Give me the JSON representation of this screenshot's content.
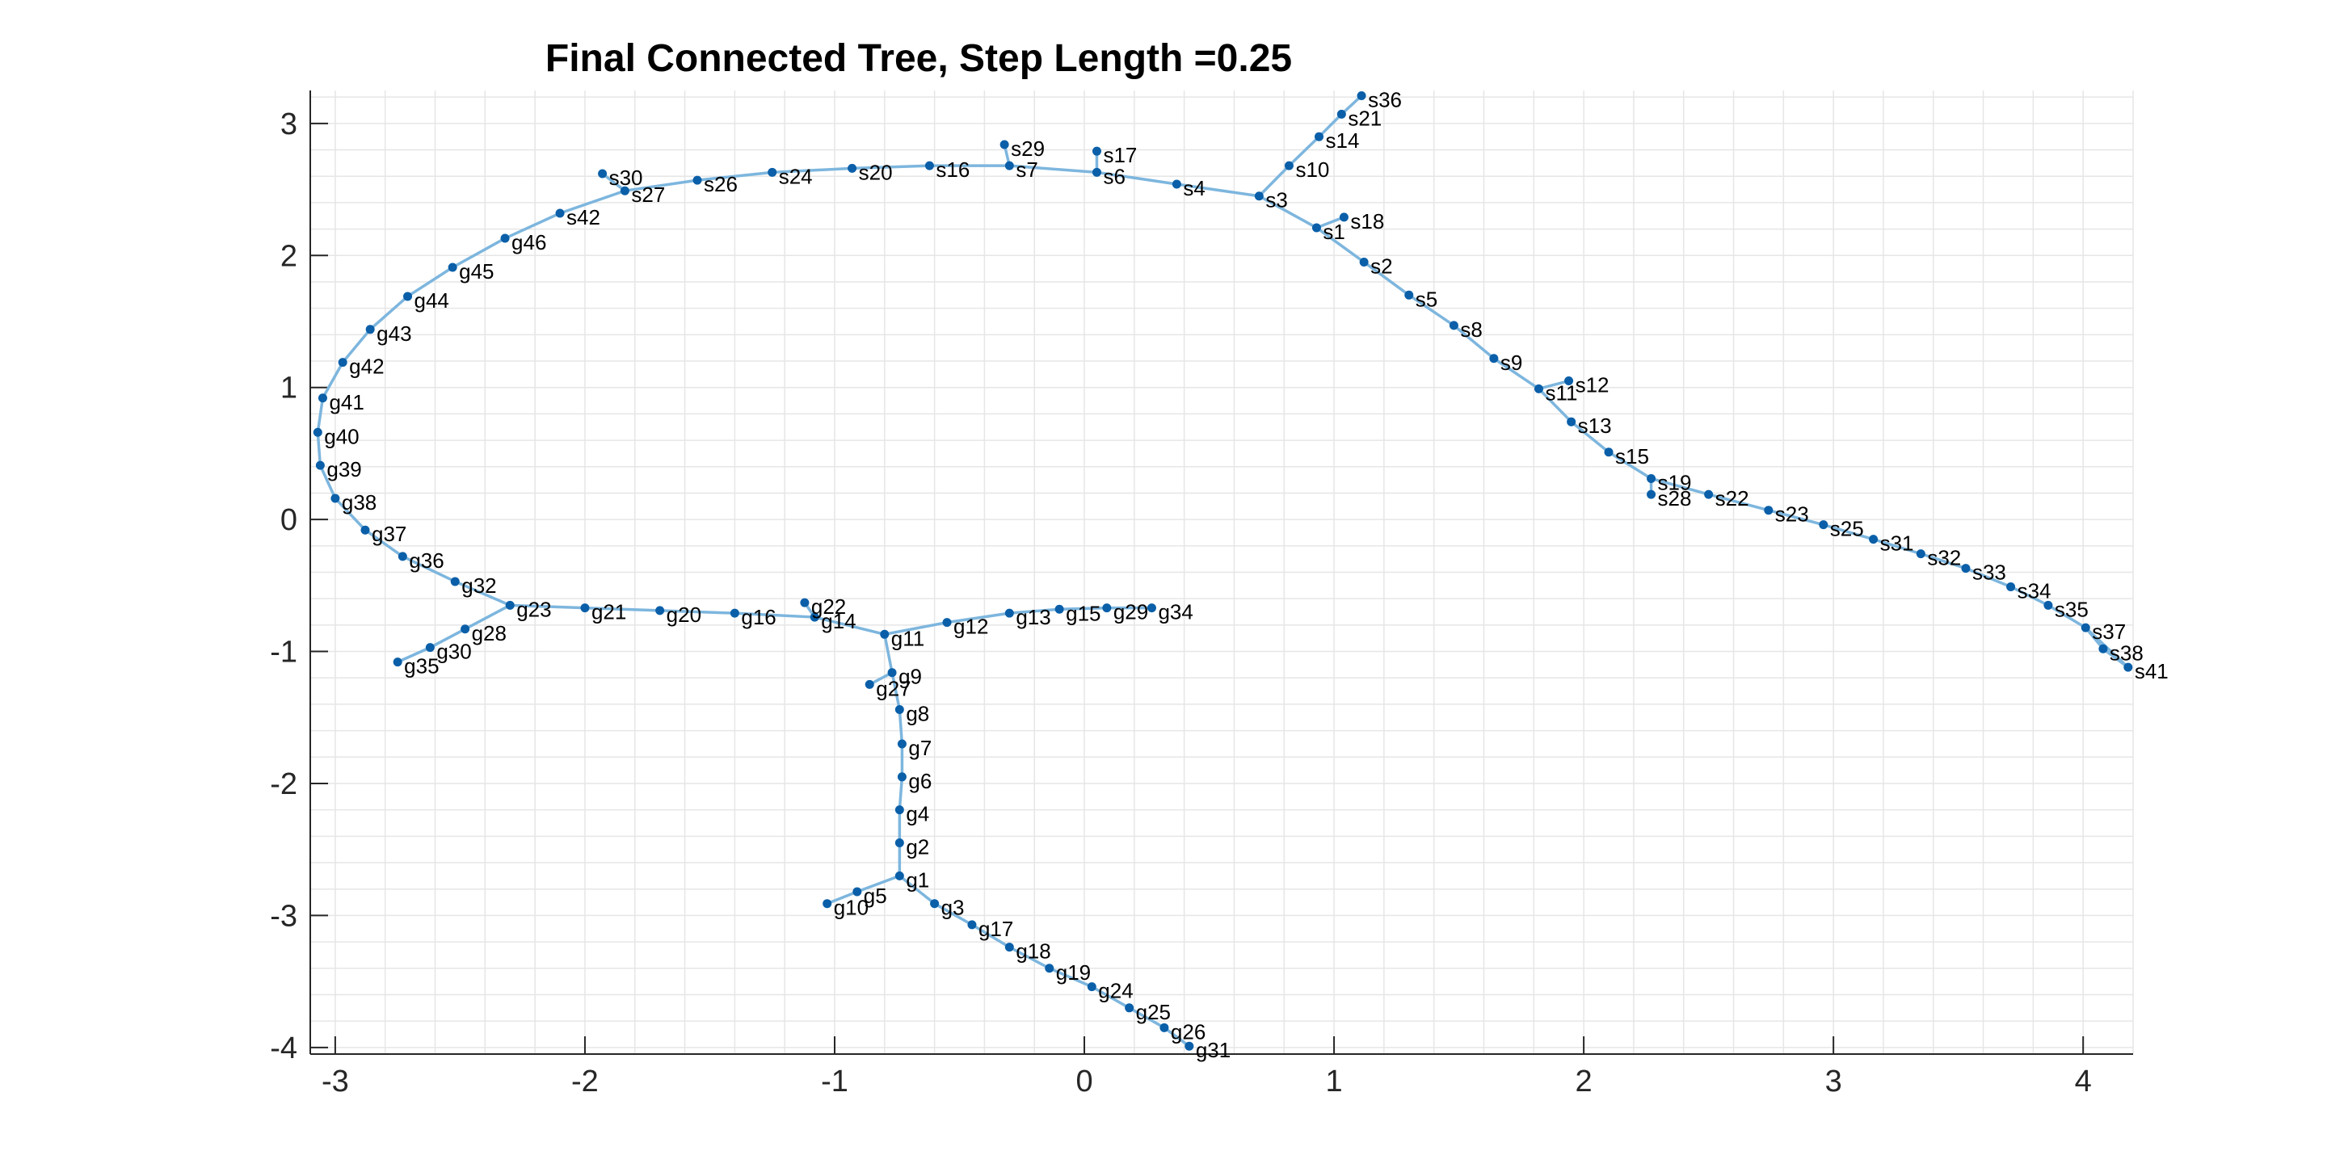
{
  "chart_data": {
    "type": "scatter",
    "title": "Final Connected Tree, Step Length =0.25",
    "xlabel": "",
    "ylabel": "",
    "xlim": [
      -3.1,
      4.2
    ],
    "ylim": [
      -4.05,
      3.25
    ],
    "xticks": [
      -3,
      -2,
      -1,
      0,
      1,
      2,
      3,
      4
    ],
    "yticks": [
      -4,
      -3,
      -2,
      -1,
      0,
      1,
      2,
      3
    ],
    "grid": true,
    "colors": {
      "edge": "#7db6de",
      "node": "#0a5fa8"
    },
    "nodes": [
      {
        "name": "s1",
        "x": 0.93,
        "y": 2.21
      },
      {
        "name": "s2",
        "x": 1.12,
        "y": 1.95
      },
      {
        "name": "s3",
        "x": 0.7,
        "y": 2.45
      },
      {
        "name": "s4",
        "x": 0.37,
        "y": 2.54
      },
      {
        "name": "s5",
        "x": 1.3,
        "y": 1.7
      },
      {
        "name": "s6",
        "x": 0.05,
        "y": 2.63
      },
      {
        "name": "s7",
        "x": -0.3,
        "y": 2.68
      },
      {
        "name": "s8",
        "x": 1.48,
        "y": 1.47
      },
      {
        "name": "s9",
        "x": 1.64,
        "y": 1.22
      },
      {
        "name": "s10",
        "x": 0.82,
        "y": 2.68
      },
      {
        "name": "s11",
        "x": 1.82,
        "y": 0.99
      },
      {
        "name": "s12",
        "x": 1.94,
        "y": 1.05
      },
      {
        "name": "s13",
        "x": 1.95,
        "y": 0.74
      },
      {
        "name": "s14",
        "x": 0.94,
        "y": 2.9
      },
      {
        "name": "s15",
        "x": 2.1,
        "y": 0.51
      },
      {
        "name": "s16",
        "x": -0.62,
        "y": 2.68
      },
      {
        "name": "s17",
        "x": 0.05,
        "y": 2.79
      },
      {
        "name": "s18",
        "x": 1.04,
        "y": 2.29
      },
      {
        "name": "s19",
        "x": 2.27,
        "y": 0.31
      },
      {
        "name": "s20",
        "x": -0.93,
        "y": 2.66
      },
      {
        "name": "s21",
        "x": 1.03,
        "y": 3.07
      },
      {
        "name": "s22",
        "x": 2.5,
        "y": 0.19
      },
      {
        "name": "s23",
        "x": 2.74,
        "y": 0.07
      },
      {
        "name": "s24",
        "x": -1.25,
        "y": 2.63
      },
      {
        "name": "s25",
        "x": 2.96,
        "y": -0.04
      },
      {
        "name": "s26",
        "x": -1.55,
        "y": 2.57
      },
      {
        "name": "s27",
        "x": -1.84,
        "y": 2.49
      },
      {
        "name": "s28",
        "x": 2.27,
        "y": 0.19
      },
      {
        "name": "s29",
        "x": -0.32,
        "y": 2.84
      },
      {
        "name": "s30",
        "x": -1.93,
        "y": 2.62
      },
      {
        "name": "s31",
        "x": 3.16,
        "y": -0.15
      },
      {
        "name": "s32",
        "x": 3.35,
        "y": -0.26
      },
      {
        "name": "s33",
        "x": 3.53,
        "y": -0.37
      },
      {
        "name": "s34",
        "x": 3.71,
        "y": -0.51
      },
      {
        "name": "s35",
        "x": 3.86,
        "y": -0.65
      },
      {
        "name": "s36",
        "x": 1.11,
        "y": 3.21
      },
      {
        "name": "s37",
        "x": 4.01,
        "y": -0.82
      },
      {
        "name": "s38",
        "x": 4.08,
        "y": -0.98
      },
      {
        "name": "s41",
        "x": 4.18,
        "y": -1.12
      },
      {
        "name": "s42",
        "x": -2.1,
        "y": 2.32
      },
      {
        "name": "g1",
        "x": -0.74,
        "y": -2.7
      },
      {
        "name": "g2",
        "x": -0.74,
        "y": -2.45
      },
      {
        "name": "g3",
        "x": -0.6,
        "y": -2.91
      },
      {
        "name": "g4",
        "x": -0.74,
        "y": -2.2
      },
      {
        "name": "g5",
        "x": -0.91,
        "y": -2.82
      },
      {
        "name": "g6",
        "x": -0.73,
        "y": -1.95
      },
      {
        "name": "g7",
        "x": -0.73,
        "y": -1.7
      },
      {
        "name": "g8",
        "x": -0.74,
        "y": -1.44
      },
      {
        "name": "g9",
        "x": -0.77,
        "y": -1.16
      },
      {
        "name": "g10",
        "x": -1.03,
        "y": -2.91
      },
      {
        "name": "g11",
        "x": -0.8,
        "y": -0.87
      },
      {
        "name": "g12",
        "x": -0.55,
        "y": -0.78
      },
      {
        "name": "g13",
        "x": -0.3,
        "y": -0.71
      },
      {
        "name": "g14",
        "x": -1.08,
        "y": -0.74
      },
      {
        "name": "g15",
        "x": -0.1,
        "y": -0.68
      },
      {
        "name": "g16",
        "x": -1.4,
        "y": -0.71
      },
      {
        "name": "g17",
        "x": -0.45,
        "y": -3.07
      },
      {
        "name": "g18",
        "x": -0.3,
        "y": -3.24
      },
      {
        "name": "g19",
        "x": -0.14,
        "y": -3.4
      },
      {
        "name": "g20",
        "x": -1.7,
        "y": -0.69
      },
      {
        "name": "g21",
        "x": -2.0,
        "y": -0.67
      },
      {
        "name": "g22",
        "x": -1.12,
        "y": -0.63
      },
      {
        "name": "g23",
        "x": -2.3,
        "y": -0.65
      },
      {
        "name": "g24",
        "x": 0.03,
        "y": -3.54
      },
      {
        "name": "g25",
        "x": 0.18,
        "y": -3.7
      },
      {
        "name": "g26",
        "x": 0.32,
        "y": -3.85
      },
      {
        "name": "g27",
        "x": -0.86,
        "y": -1.25
      },
      {
        "name": "g28",
        "x": -2.48,
        "y": -0.83
      },
      {
        "name": "g29",
        "x": 0.09,
        "y": -0.67
      },
      {
        "name": "g30",
        "x": -2.62,
        "y": -0.97
      },
      {
        "name": "g31",
        "x": 0.42,
        "y": -3.99
      },
      {
        "name": "g32",
        "x": -2.52,
        "y": -0.47
      },
      {
        "name": "g34",
        "x": 0.27,
        "y": -0.67
      },
      {
        "name": "g35",
        "x": -2.75,
        "y": -1.08
      },
      {
        "name": "g36",
        "x": -2.73,
        "y": -0.28
      },
      {
        "name": "g37",
        "x": -2.88,
        "y": -0.08
      },
      {
        "name": "g38",
        "x": -3.0,
        "y": 0.16
      },
      {
        "name": "g39",
        "x": -3.06,
        "y": 0.41
      },
      {
        "name": "g40",
        "x": -3.07,
        "y": 0.66
      },
      {
        "name": "g41",
        "x": -3.05,
        "y": 0.92
      },
      {
        "name": "g42",
        "x": -2.97,
        "y": 1.19
      },
      {
        "name": "g43",
        "x": -2.86,
        "y": 1.44
      },
      {
        "name": "g44",
        "x": -2.71,
        "y": 1.69
      },
      {
        "name": "g45",
        "x": -2.53,
        "y": 1.91
      },
      {
        "name": "g46",
        "x": -2.32,
        "y": 2.13
      }
    ],
    "edges": [
      [
        "s3",
        "s1"
      ],
      [
        "s1",
        "s18"
      ],
      [
        "s1",
        "s2"
      ],
      [
        "s2",
        "s5"
      ],
      [
        "s5",
        "s8"
      ],
      [
        "s8",
        "s9"
      ],
      [
        "s9",
        "s11"
      ],
      [
        "s11",
        "s12"
      ],
      [
        "s11",
        "s13"
      ],
      [
        "s13",
        "s15"
      ],
      [
        "s15",
        "s19"
      ],
      [
        "s19",
        "s28"
      ],
      [
        "s19",
        "s22"
      ],
      [
        "s22",
        "s23"
      ],
      [
        "s23",
        "s25"
      ],
      [
        "s25",
        "s31"
      ],
      [
        "s31",
        "s32"
      ],
      [
        "s32",
        "s33"
      ],
      [
        "s33",
        "s34"
      ],
      [
        "s34",
        "s35"
      ],
      [
        "s35",
        "s37"
      ],
      [
        "s37",
        "s41"
      ],
      [
        "s37",
        "s38"
      ],
      [
        "s38",
        "s41"
      ],
      [
        "s3",
        "s10"
      ],
      [
        "s10",
        "s14"
      ],
      [
        "s14",
        "s21"
      ],
      [
        "s21",
        "s36"
      ],
      [
        "s3",
        "s4"
      ],
      [
        "s4",
        "s6"
      ],
      [
        "s6",
        "s17"
      ],
      [
        "s6",
        "s7"
      ],
      [
        "s7",
        "s29"
      ],
      [
        "s7",
        "s16"
      ],
      [
        "s16",
        "s20"
      ],
      [
        "s20",
        "s24"
      ],
      [
        "s24",
        "s26"
      ],
      [
        "s26",
        "s27"
      ],
      [
        "s27",
        "s30"
      ],
      [
        "s27",
        "s42"
      ],
      [
        "s42",
        "g46"
      ],
      [
        "g46",
        "g45"
      ],
      [
        "g45",
        "g44"
      ],
      [
        "g44",
        "g43"
      ],
      [
        "g43",
        "g42"
      ],
      [
        "g42",
        "g41"
      ],
      [
        "g41",
        "g40"
      ],
      [
        "g40",
        "g39"
      ],
      [
        "g39",
        "g38"
      ],
      [
        "g38",
        "g37"
      ],
      [
        "g37",
        "g36"
      ],
      [
        "g36",
        "g32"
      ],
      [
        "g32",
        "g23"
      ],
      [
        "g23",
        "g28"
      ],
      [
        "g28",
        "g30"
      ],
      [
        "g30",
        "g35"
      ],
      [
        "g23",
        "g21"
      ],
      [
        "g21",
        "g20"
      ],
      [
        "g20",
        "g16"
      ],
      [
        "g16",
        "g14"
      ],
      [
        "g14",
        "g22"
      ],
      [
        "g14",
        "g11"
      ],
      [
        "g11",
        "g12"
      ],
      [
        "g12",
        "g13"
      ],
      [
        "g13",
        "g15"
      ],
      [
        "g15",
        "g29"
      ],
      [
        "g29",
        "g34"
      ],
      [
        "g11",
        "g9"
      ],
      [
        "g9",
        "g27"
      ],
      [
        "g9",
        "g8"
      ],
      [
        "g8",
        "g7"
      ],
      [
        "g7",
        "g6"
      ],
      [
        "g6",
        "g4"
      ],
      [
        "g4",
        "g2"
      ],
      [
        "g2",
        "g1"
      ],
      [
        "g1",
        "g5"
      ],
      [
        "g5",
        "g10"
      ],
      [
        "g1",
        "g3"
      ],
      [
        "g3",
        "g17"
      ],
      [
        "g17",
        "g18"
      ],
      [
        "g18",
        "g19"
      ],
      [
        "g19",
        "g24"
      ],
      [
        "g24",
        "g25"
      ],
      [
        "g25",
        "g26"
      ],
      [
        "g26",
        "g31"
      ]
    ]
  }
}
